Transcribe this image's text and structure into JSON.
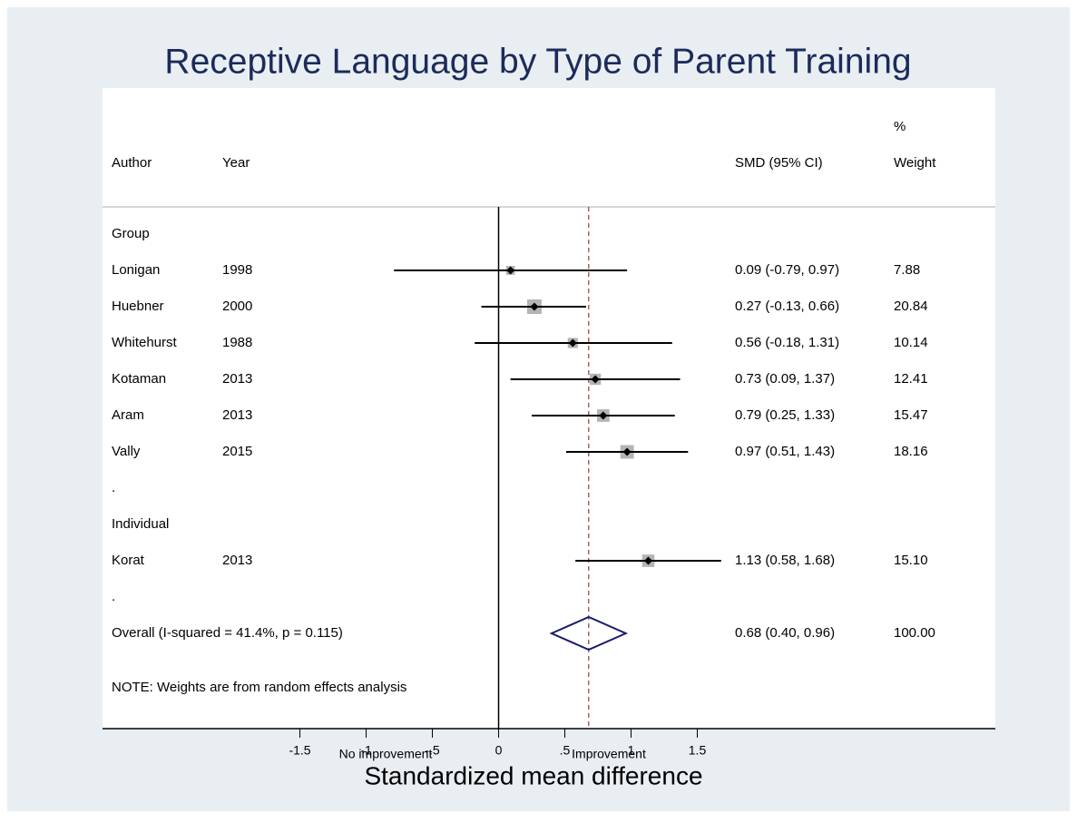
{
  "chart_data": {
    "type": "forest",
    "title": "Receptive Language by Type of Parent Training",
    "xlabel": "Standardized mean difference",
    "left_note": "No improvement",
    "right_note": "Improvement",
    "headers": {
      "author": "Author",
      "year": "Year",
      "effect": "SMD (95% CI)",
      "weight_top": "%",
      "weight": "Weight"
    },
    "groups": [
      {
        "name": "Group",
        "after": ".",
        "studies": [
          {
            "author": "Lonigan",
            "year": "1998",
            "smd": 0.09,
            "lo": -0.79,
            "hi": 0.97,
            "ci_label": "0.09 (-0.79, 0.97)",
            "weight": 7.88,
            "weight_label": "7.88"
          },
          {
            "author": "Huebner",
            "year": "2000",
            "smd": 0.27,
            "lo": -0.13,
            "hi": 0.66,
            "ci_label": "0.27 (-0.13, 0.66)",
            "weight": 20.84,
            "weight_label": "20.84"
          },
          {
            "author": "Whitehurst",
            "year": "1988",
            "smd": 0.56,
            "lo": -0.18,
            "hi": 1.31,
            "ci_label": "0.56 (-0.18, 1.31)",
            "weight": 10.14,
            "weight_label": "10.14"
          },
          {
            "author": "Kotaman",
            "year": "2013",
            "smd": 0.73,
            "lo": 0.09,
            "hi": 1.37,
            "ci_label": "0.73 (0.09, 1.37)",
            "weight": 12.41,
            "weight_label": "12.41"
          },
          {
            "author": "Aram",
            "year": "2013",
            "smd": 0.79,
            "lo": 0.25,
            "hi": 1.33,
            "ci_label": "0.79 (0.25, 1.33)",
            "weight": 15.47,
            "weight_label": "15.47"
          },
          {
            "author": "Vally",
            "year": "2015",
            "smd": 0.97,
            "lo": 0.51,
            "hi": 1.43,
            "ci_label": "0.97 (0.51, 1.43)",
            "weight": 18.16,
            "weight_label": "18.16"
          }
        ]
      },
      {
        "name": "Individual",
        "after": ".",
        "studies": [
          {
            "author": "Korat",
            "year": "2013",
            "smd": 1.13,
            "lo": 0.58,
            "hi": 1.68,
            "ci_label": "1.13 (0.58, 1.68)",
            "weight": 15.1,
            "weight_label": "15.10"
          }
        ]
      }
    ],
    "overall": {
      "label": "Overall  (I-squared = 41.4%, p = 0.115)",
      "smd": 0.68,
      "lo": 0.4,
      "hi": 0.96,
      "ci_label": "0.68 (0.40, 0.96)",
      "weight": 100,
      "weight_label": "100.00"
    },
    "note": "NOTE: Weights are from random effects analysis",
    "xlim": [
      -2.99,
      3.75
    ],
    "xticks": [
      -1.5,
      -1,
      {
        "value": -0.5,
        "label": "-.5"
      },
      0,
      {
        "value": 0.5,
        "label": ".5"
      },
      1,
      1.5
    ],
    "colors": {
      "box": "#b4b4b4",
      "diamond": "#1a1a6e",
      "overall_line": "#9b3a3a"
    }
  }
}
